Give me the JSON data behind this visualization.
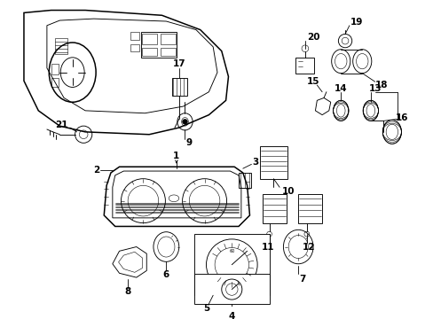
{
  "background_color": "#ffffff",
  "fig_width": 4.89,
  "fig_height": 3.6,
  "dpi": 100,
  "label_fontsize": 7.5,
  "lw_main": 1.1,
  "lw_thin": 0.65,
  "lw_hair": 0.4
}
